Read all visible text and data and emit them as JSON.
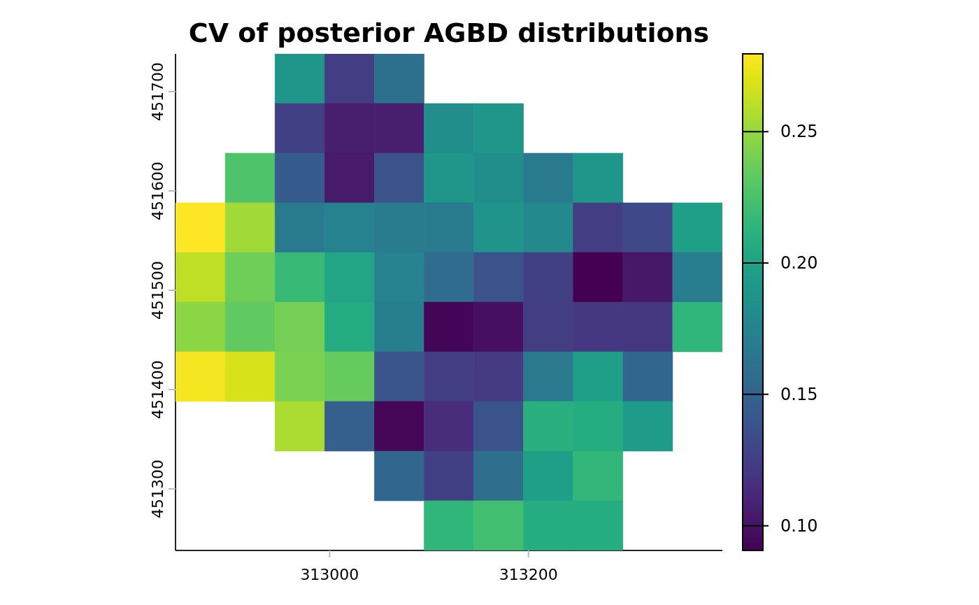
{
  "chart_data": {
    "type": "heatmap",
    "title": "CV of posterior AGBD distributions",
    "xlim": [
      312845,
      313395
    ],
    "xticks": [
      313000,
      313200
    ],
    "ylim": [
      451238,
      451738
    ],
    "yticks": [
      451300,
      451400,
      451500,
      451600,
      451700
    ],
    "clim": [
      0.0906,
      0.2796
    ],
    "cticks": [
      {
        "value": 0.1,
        "label": "0.10"
      },
      {
        "value": 0.15,
        "label": "0.15"
      },
      {
        "value": 0.2,
        "label": "0.20"
      },
      {
        "value": 0.25,
        "label": "0.25"
      }
    ],
    "cells": [
      [
        null,
        null,
        0.189,
        0.125,
        0.16,
        null,
        null,
        null,
        null,
        null,
        null
      ],
      [
        null,
        null,
        0.126,
        0.106,
        0.106,
        0.183,
        0.189,
        null,
        null,
        null,
        null
      ],
      [
        null,
        0.227,
        0.145,
        0.104,
        0.138,
        0.189,
        0.183,
        0.168,
        0.189,
        null,
        null
      ],
      [
        0.2796,
        0.253,
        0.168,
        0.174,
        0.169,
        0.168,
        0.188,
        0.179,
        0.125,
        0.132,
        0.198
      ],
      [
        0.261,
        0.238,
        0.218,
        0.202,
        0.174,
        0.157,
        0.138,
        0.126,
        0.0906,
        0.102,
        0.17
      ],
      [
        0.247,
        0.233,
        0.24,
        0.206,
        0.172,
        0.092,
        0.098,
        0.125,
        0.121,
        0.12,
        0.214
      ],
      [
        0.277,
        0.268,
        0.242,
        0.235,
        0.14,
        0.125,
        0.123,
        0.167,
        0.197,
        0.153,
        null
      ],
      [
        null,
        null,
        0.256,
        0.147,
        0.093,
        0.115,
        0.139,
        0.21,
        0.207,
        0.194,
        null
      ],
      [
        null,
        null,
        null,
        null,
        0.153,
        0.126,
        0.159,
        0.197,
        0.215,
        null,
        null
      ],
      [
        null,
        null,
        null,
        null,
        null,
        0.214,
        0.222,
        0.207,
        0.207,
        null,
        null
      ]
    ]
  }
}
